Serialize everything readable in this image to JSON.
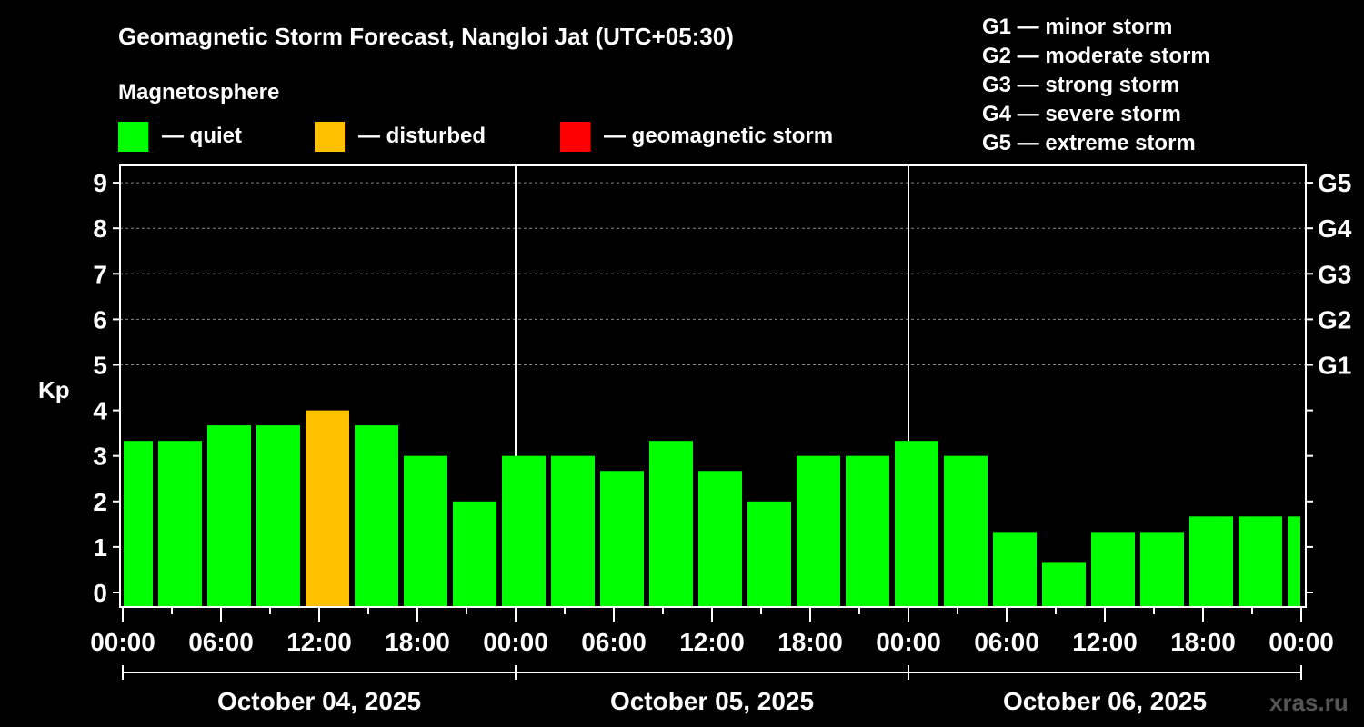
{
  "chart_data": {
    "type": "bar",
    "title": "Geomagnetic Storm Forecast, Nangloi Jat (UTC+05:30)",
    "subtitle": "Magnetosphere",
    "ylabel": "Kp",
    "ylim": [
      0,
      9
    ],
    "yticks": [
      "0",
      "1",
      "2",
      "3",
      "4",
      "5",
      "6",
      "7",
      "8",
      "9"
    ],
    "right_ticks": [
      {
        "kp": 5,
        "label": "G1"
      },
      {
        "kp": 6,
        "label": "G2"
      },
      {
        "kp": 7,
        "label": "G3"
      },
      {
        "kp": 8,
        "label": "G4"
      },
      {
        "kp": 9,
        "label": "G5"
      }
    ],
    "grid": true,
    "legend": [
      {
        "label": "— quiet",
        "color": "#00ff00"
      },
      {
        "label": "— disturbed",
        "color": "#ffc000"
      },
      {
        "label": "— geomagnetic storm",
        "color": "#ff0000"
      }
    ],
    "scale_legend": [
      "G1 — minor storm",
      "G2 — moderate storm",
      "G3 — strong storm",
      "G4 — severe storm",
      "G5 — extreme storm"
    ],
    "xtick_labels": [
      "00:00",
      "06:00",
      "12:00",
      "18:00",
      "00:00",
      "06:00",
      "12:00",
      "18:00",
      "00:00",
      "06:00",
      "12:00",
      "18:00",
      "00:00"
    ],
    "days": [
      "October 04, 2025",
      "October 05, 2025",
      "October 06, 2025"
    ],
    "bars": [
      {
        "start_h": 0,
        "end_h": 2,
        "kp": 3.33,
        "color": "#00ff00"
      },
      {
        "start_h": 2,
        "end_h": 5,
        "kp": 3.33,
        "color": "#00ff00"
      },
      {
        "start_h": 5,
        "end_h": 8,
        "kp": 3.67,
        "color": "#00ff00"
      },
      {
        "start_h": 8,
        "end_h": 11,
        "kp": 3.67,
        "color": "#00ff00"
      },
      {
        "start_h": 11,
        "end_h": 14,
        "kp": 4,
        "color": "#ffc000"
      },
      {
        "start_h": 14,
        "end_h": 17,
        "kp": 3.67,
        "color": "#00ff00"
      },
      {
        "start_h": 17,
        "end_h": 20,
        "kp": 3,
        "color": "#00ff00"
      },
      {
        "start_h": 20,
        "end_h": 23,
        "kp": 2,
        "color": "#00ff00"
      },
      {
        "start_h": 23,
        "end_h": 26,
        "kp": 3,
        "color": "#00ff00"
      },
      {
        "start_h": 26,
        "end_h": 29,
        "kp": 3,
        "color": "#00ff00"
      },
      {
        "start_h": 29,
        "end_h": 32,
        "kp": 2.67,
        "color": "#00ff00"
      },
      {
        "start_h": 32,
        "end_h": 35,
        "kp": 3.33,
        "color": "#00ff00"
      },
      {
        "start_h": 35,
        "end_h": 38,
        "kp": 2.67,
        "color": "#00ff00"
      },
      {
        "start_h": 38,
        "end_h": 41,
        "kp": 2,
        "color": "#00ff00"
      },
      {
        "start_h": 41,
        "end_h": 44,
        "kp": 3,
        "color": "#00ff00"
      },
      {
        "start_h": 44,
        "end_h": 47,
        "kp": 3,
        "color": "#00ff00"
      },
      {
        "start_h": 47,
        "end_h": 50,
        "kp": 3.33,
        "color": "#00ff00"
      },
      {
        "start_h": 50,
        "end_h": 53,
        "kp": 3,
        "color": "#00ff00"
      },
      {
        "start_h": 53,
        "end_h": 56,
        "kp": 1.33,
        "color": "#00ff00"
      },
      {
        "start_h": 56,
        "end_h": 59,
        "kp": 0.67,
        "color": "#00ff00"
      },
      {
        "start_h": 59,
        "end_h": 62,
        "kp": 1.33,
        "color": "#00ff00"
      },
      {
        "start_h": 62,
        "end_h": 65,
        "kp": 1.33,
        "color": "#00ff00"
      },
      {
        "start_h": 65,
        "end_h": 68,
        "kp": 1.67,
        "color": "#00ff00"
      },
      {
        "start_h": 68,
        "end_h": 71,
        "kp": 1.67,
        "color": "#00ff00"
      },
      {
        "start_h": 71,
        "end_h": 72,
        "kp": 1.67,
        "color": "#00ff00"
      }
    ],
    "watermark": "xras.ru"
  }
}
